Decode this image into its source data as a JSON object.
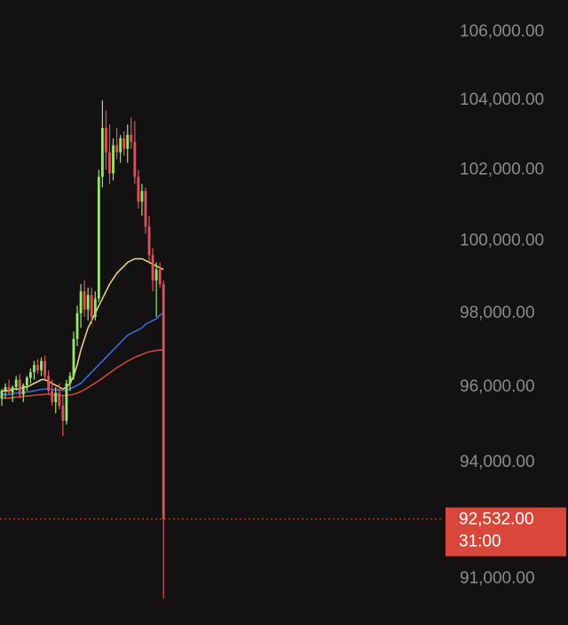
{
  "chart_data": {
    "type": "candlestick",
    "log_scale": true,
    "up_color": "#9be86b",
    "down_color": "#e0525b",
    "open": [
      95700,
      95900,
      96000,
      95850,
      96000,
      96200,
      95800,
      96050,
      96250,
      96400,
      96600,
      96450,
      96700,
      96300,
      95900,
      95600,
      95850,
      95500,
      95100,
      96100,
      96300,
      97300,
      98000,
      98600,
      98100,
      98500,
      97900,
      98400,
      101800,
      103200,
      102500,
      101900,
      102700,
      102500,
      102900,
      102600,
      103000,
      102800,
      101800,
      101100,
      101400,
      100400,
      99600,
      98900,
      99200,
      98800
    ],
    "high": [
      95950,
      96100,
      96200,
      96050,
      96300,
      96350,
      96100,
      96300,
      96500,
      96700,
      96750,
      96800,
      96850,
      96450,
      96200,
      96000,
      96100,
      95800,
      96200,
      96400,
      97500,
      98200,
      98800,
      98900,
      98700,
      98700,
      98600,
      102000,
      104000,
      103700,
      103300,
      102900,
      103200,
      103000,
      103100,
      103300,
      103500,
      103400,
      102000,
      101600,
      101500,
      100700,
      99800,
      99400,
      99400,
      98900
    ],
    "low": [
      95500,
      95700,
      95800,
      95600,
      95900,
      95700,
      95600,
      95900,
      96100,
      96200,
      96350,
      96300,
      96200,
      95800,
      95500,
      95300,
      95400,
      94700,
      95000,
      95900,
      96200,
      97100,
      97600,
      97900,
      97800,
      97700,
      97800,
      98300,
      101500,
      102000,
      101600,
      101700,
      102300,
      102200,
      102400,
      102200,
      102600,
      101600,
      100900,
      100700,
      100200,
      99400,
      98600,
      97900,
      98700,
      90500
    ],
    "close": [
      95900,
      96000,
      95850,
      96000,
      96200,
      95800,
      96050,
      96250,
      96400,
      96600,
      96450,
      96700,
      96300,
      95900,
      95600,
      95850,
      95500,
      95100,
      96100,
      96300,
      97300,
      98000,
      98600,
      98100,
      98500,
      97900,
      98400,
      101800,
      103200,
      102500,
      101900,
      102700,
      102500,
      102900,
      102600,
      103000,
      102800,
      101800,
      101100,
      101400,
      100400,
      99600,
      98900,
      99200,
      98800,
      92532
    ],
    "lines": [
      {
        "color": "#f0dc78",
        "values": [
          95900,
          95900,
          95900,
          95950,
          95950,
          95950,
          96000,
          96000,
          96050,
          96100,
          96150,
          96200,
          96200,
          96150,
          96100,
          96050,
          96000,
          95950,
          96000,
          96100,
          96300,
          96600,
          97000,
          97300,
          97600,
          97800,
          98000,
          98200,
          98400,
          98600,
          98800,
          98950,
          99100,
          99200,
          99300,
          99400,
          99450,
          99500,
          99500,
          99500,
          99450,
          99400,
          99350,
          99300,
          99250,
          99200
        ]
      },
      {
        "color": "#3b6fe6",
        "values": [
          95800,
          95800,
          95800,
          95820,
          95840,
          95850,
          95860,
          95870,
          95880,
          95900,
          95920,
          95940,
          95950,
          95950,
          95940,
          95930,
          95920,
          95910,
          95920,
          95950,
          96000,
          96050,
          96100,
          96200,
          96300,
          96400,
          96500,
          96600,
          96700,
          96800,
          96900,
          97000,
          97100,
          97200,
          97300,
          97400,
          97450,
          97500,
          97550,
          97600,
          97700,
          97750,
          97800,
          97850,
          97950,
          98000
        ]
      },
      {
        "color": "#d8463f",
        "values": [
          95700,
          95700,
          95710,
          95720,
          95730,
          95740,
          95750,
          95760,
          95770,
          95780,
          95790,
          95800,
          95810,
          95810,
          95800,
          95790,
          95780,
          95770,
          95780,
          95790,
          95810,
          95840,
          95880,
          95930,
          95990,
          96050,
          96110,
          96170,
          96240,
          96310,
          96380,
          96450,
          96520,
          96580,
          96640,
          96700,
          96750,
          96800,
          96840,
          96880,
          96920,
          96950,
          96970,
          96990,
          97000,
          97000
        ]
      }
    ],
    "ylim": [
      89835,
      106950
    ],
    "yticks": [
      {
        "value": 91000,
        "label": "91,000.00"
      },
      {
        "value": 94000,
        "label": "94,000.00"
      },
      {
        "value": 96000,
        "label": "96,000.00"
      },
      {
        "value": 98000,
        "label": "98,000.00"
      },
      {
        "value": 100000,
        "label": "100,000.00"
      },
      {
        "value": 102000,
        "label": "102,000.00"
      },
      {
        "value": 104000,
        "label": "104,000.00"
      },
      {
        "value": 106000,
        "label": "106,000.00"
      }
    ],
    "last_price": {
      "value": 92532,
      "label": "92,532.00",
      "countdown": "31:00",
      "color": "#d9473a"
    }
  }
}
